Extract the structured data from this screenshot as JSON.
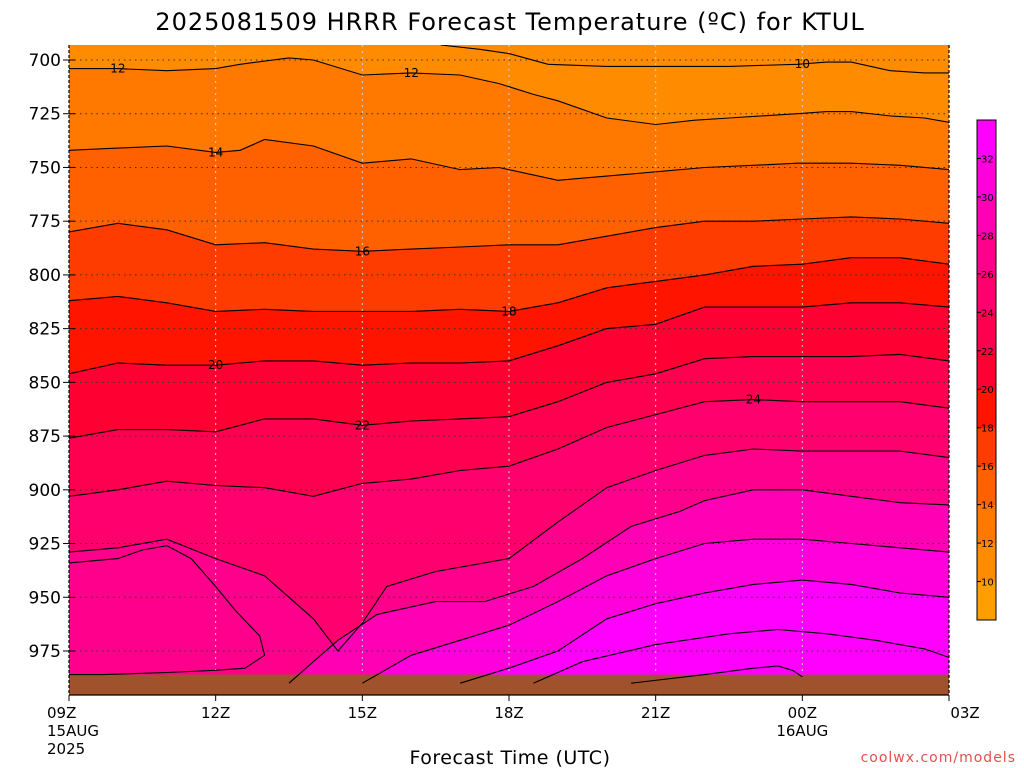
{
  "chart_data": {
    "type": "heatmap",
    "title": "2025081509 HRRR Forecast Temperature (ºC) for KTUL",
    "xlabel": "Forecast Time (UTC)",
    "ylabel": "",
    "y_axis": {
      "ticks": [
        700,
        725,
        750,
        775,
        800,
        825,
        850,
        875,
        900,
        925,
        950,
        975
      ],
      "range": [
        693,
        990
      ],
      "inverted": true
    },
    "x_axis": {
      "range": [
        0,
        18
      ],
      "ticks": [
        {
          "x": 0,
          "label": "09Z",
          "sub": "15AUG",
          "sub2": "2025"
        },
        {
          "x": 3,
          "label": "12Z",
          "sub": "",
          "sub2": ""
        },
        {
          "x": 6,
          "label": "15Z",
          "sub": "",
          "sub2": ""
        },
        {
          "x": 9,
          "label": "18Z",
          "sub": "",
          "sub2": ""
        },
        {
          "x": 12,
          "label": "21Z",
          "sub": "",
          "sub2": ""
        },
        {
          "x": 15,
          "label": "00Z",
          "sub": "16AUG",
          "sub2": ""
        },
        {
          "x": 18,
          "label": "03Z",
          "sub": "",
          "sub2": ""
        }
      ]
    },
    "grid": true,
    "colorbar": {
      "placement": "right",
      "tick_labels": [
        "10",
        "12",
        "14",
        "16",
        "18",
        "20",
        "22",
        "24",
        "26",
        "28",
        "30",
        "32"
      ],
      "levels": [
        {
          "min": 9,
          "max": 10,
          "color": "#ff9e00"
        },
        {
          "min": 10,
          "max": 12,
          "color": "#ff8c00"
        },
        {
          "min": 12,
          "max": 14,
          "color": "#ff7800"
        },
        {
          "min": 14,
          "max": 16,
          "color": "#ff6000"
        },
        {
          "min": 16,
          "max": 18,
          "color": "#ff3c00"
        },
        {
          "min": 18,
          "max": 20,
          "color": "#ff1400"
        },
        {
          "min": 20,
          "max": 22,
          "color": "#ff0032"
        },
        {
          "min": 22,
          "max": 24,
          "color": "#ff0050"
        },
        {
          "min": 24,
          "max": 26,
          "color": "#ff006e"
        },
        {
          "min": 26,
          "max": 28,
          "color": "#ff008c"
        },
        {
          "min": 28,
          "max": 30,
          "color": "#ff00b4"
        },
        {
          "min": 30,
          "max": 32,
          "color": "#ff00dc"
        },
        {
          "min": 32,
          "max": 34,
          "color": "#ff00ff"
        }
      ]
    },
    "contours": [
      {
        "level": 10,
        "label": "10",
        "label_x": 15,
        "points": [
          [
            7.6,
            693
          ],
          [
            8.4,
            695
          ],
          [
            9.0,
            697
          ],
          [
            9.8,
            702
          ],
          [
            11.0,
            703
          ],
          [
            13.5,
            703
          ],
          [
            14.9,
            702
          ],
          [
            15.5,
            701
          ],
          [
            16.0,
            701
          ],
          [
            16.8,
            705
          ],
          [
            17.5,
            706
          ],
          [
            18.0,
            706
          ]
        ]
      },
      {
        "level": 12,
        "label": "12",
        "label_x": 1,
        "points": [
          [
            0.0,
            704
          ],
          [
            1.0,
            704
          ],
          [
            2.0,
            705
          ],
          [
            3.0,
            704
          ],
          [
            3.5,
            702
          ],
          [
            4.5,
            699
          ],
          [
            5.0,
            700
          ],
          [
            6.0,
            707
          ],
          [
            7.0,
            706
          ],
          [
            8.0,
            707
          ],
          [
            8.8,
            711
          ],
          [
            9.5,
            716
          ],
          [
            10.0,
            719
          ],
          [
            11.0,
            727
          ],
          [
            12.0,
            730
          ],
          [
            12.8,
            728
          ],
          [
            13.5,
            727
          ],
          [
            14.9,
            725
          ],
          [
            15.5,
            724
          ],
          [
            16.0,
            724
          ],
          [
            16.8,
            726
          ],
          [
            17.5,
            727
          ],
          [
            18.0,
            729
          ]
        ]
      },
      {
        "level": 12,
        "label": "12",
        "label_x": 7,
        "points": []
      },
      {
        "level": 14,
        "label": "14",
        "label_x": 3,
        "points": [
          [
            0.0,
            742
          ],
          [
            1.0,
            741
          ],
          [
            2.0,
            740
          ],
          [
            3.0,
            743
          ],
          [
            3.5,
            742
          ],
          [
            4.0,
            737
          ],
          [
            5.0,
            740
          ],
          [
            6.0,
            748
          ],
          [
            7.0,
            746
          ],
          [
            8.0,
            751
          ],
          [
            8.8,
            750
          ],
          [
            10.0,
            756
          ],
          [
            11.0,
            754
          ],
          [
            12.0,
            752
          ],
          [
            13.0,
            750
          ],
          [
            14.0,
            749
          ],
          [
            14.9,
            748
          ],
          [
            16.0,
            748
          ],
          [
            17.0,
            749
          ],
          [
            18.0,
            751
          ]
        ]
      },
      {
        "level": 16,
        "label": "16",
        "label_x": 6,
        "points": [
          [
            0.0,
            780
          ],
          [
            1.0,
            776
          ],
          [
            2.0,
            779
          ],
          [
            3.0,
            786
          ],
          [
            4.0,
            785
          ],
          [
            5.0,
            788
          ],
          [
            6.0,
            789
          ],
          [
            7.0,
            788
          ],
          [
            8.0,
            787
          ],
          [
            9.0,
            786
          ],
          [
            10.0,
            786
          ],
          [
            11.0,
            782
          ],
          [
            12.0,
            778
          ],
          [
            13.0,
            775
          ],
          [
            14.0,
            775
          ],
          [
            15.0,
            774
          ],
          [
            16.0,
            773
          ],
          [
            17.0,
            774
          ],
          [
            18.0,
            776
          ]
        ]
      },
      {
        "level": 18,
        "label": "18",
        "label_x": 9,
        "points": [
          [
            0.0,
            812
          ],
          [
            1.0,
            810
          ],
          [
            2.0,
            813
          ],
          [
            3.0,
            817
          ],
          [
            4.0,
            816
          ],
          [
            5.0,
            817
          ],
          [
            6.0,
            817
          ],
          [
            7.0,
            817
          ],
          [
            8.0,
            816
          ],
          [
            9.0,
            817
          ],
          [
            10.0,
            813
          ],
          [
            11.0,
            806
          ],
          [
            12.0,
            803
          ],
          [
            13.0,
            800
          ],
          [
            14.0,
            796
          ],
          [
            15.0,
            795
          ],
          [
            16.0,
            792
          ],
          [
            17.0,
            792
          ],
          [
            18.0,
            795
          ]
        ]
      },
      {
        "level": 20,
        "label": "20",
        "label_x": 3,
        "points": [
          [
            0.0,
            846
          ],
          [
            1.0,
            841
          ],
          [
            2.0,
            842
          ],
          [
            3.0,
            842
          ],
          [
            4.0,
            840
          ],
          [
            5.0,
            840
          ],
          [
            6.0,
            842
          ],
          [
            7.0,
            841
          ],
          [
            8.0,
            841
          ],
          [
            9.0,
            840
          ],
          [
            10.0,
            833
          ],
          [
            11.0,
            825
          ],
          [
            12.0,
            823
          ],
          [
            13.0,
            815
          ],
          [
            14.0,
            815
          ],
          [
            15.0,
            815
          ],
          [
            16.0,
            813
          ],
          [
            17.0,
            813
          ],
          [
            18.0,
            815
          ]
        ]
      },
      {
        "level": 22,
        "label": "22",
        "label_x": 6,
        "points": [
          [
            0.0,
            876
          ],
          [
            1.0,
            872
          ],
          [
            2.0,
            872
          ],
          [
            3.0,
            873
          ],
          [
            4.0,
            867
          ],
          [
            5.0,
            867
          ],
          [
            6.0,
            870
          ],
          [
            7.0,
            868
          ],
          [
            8.0,
            867
          ],
          [
            9.0,
            866
          ],
          [
            10.0,
            859
          ],
          [
            11.0,
            850
          ],
          [
            12.0,
            846
          ],
          [
            13.0,
            839
          ],
          [
            14.0,
            838
          ],
          [
            15.0,
            838
          ],
          [
            16.0,
            838
          ],
          [
            17.0,
            837
          ],
          [
            18.0,
            840
          ]
        ]
      },
      {
        "level": 24,
        "label": "24",
        "label_x": 14,
        "points": [
          [
            0.0,
            903
          ],
          [
            1.0,
            900
          ],
          [
            2.0,
            896
          ],
          [
            3.0,
            898
          ],
          [
            4.0,
            899
          ],
          [
            5.0,
            903
          ],
          [
            6.0,
            897
          ],
          [
            7.0,
            895
          ],
          [
            8.0,
            891
          ],
          [
            9.0,
            889
          ],
          [
            10.0,
            881
          ],
          [
            11.0,
            871
          ],
          [
            12.0,
            865
          ],
          [
            13.0,
            859
          ],
          [
            14.0,
            858
          ],
          [
            15.0,
            859
          ],
          [
            16.0,
            859
          ],
          [
            17.0,
            859
          ],
          [
            18.0,
            862
          ]
        ]
      },
      {
        "level": 26,
        "label": "",
        "label_x": null,
        "points": [
          [
            0.0,
            929
          ],
          [
            1.0,
            927
          ],
          [
            2.0,
            923
          ],
          [
            3.0,
            932
          ],
          [
            4.0,
            940
          ],
          [
            5.0,
            960
          ],
          [
            5.5,
            975
          ],
          [
            6.0,
            962
          ],
          [
            6.5,
            945
          ],
          [
            7.5,
            938
          ],
          [
            9.0,
            932
          ],
          [
            10.0,
            915
          ],
          [
            11.0,
            899
          ],
          [
            12.0,
            891
          ],
          [
            13.0,
            884
          ],
          [
            14.0,
            881
          ],
          [
            15.0,
            882
          ],
          [
            16.0,
            882
          ],
          [
            17.0,
            882
          ],
          [
            18.0,
            885
          ]
        ]
      },
      {
        "level": 26,
        "label": "",
        "label_x": null,
        "points": [
          [
            0.0,
            986
          ],
          [
            0.7,
            986
          ],
          [
            2.0,
            985
          ],
          [
            3.0,
            984
          ],
          [
            3.6,
            983
          ],
          [
            4.0,
            977
          ],
          [
            3.9,
            968
          ],
          [
            3.4,
            956
          ],
          [
            3.0,
            945
          ],
          [
            2.5,
            932
          ],
          [
            2.0,
            926
          ],
          [
            1.5,
            928
          ],
          [
            1.0,
            932
          ],
          [
            0.0,
            934
          ]
        ]
      },
      {
        "level": 28,
        "label": "",
        "label_x": null,
        "points": [
          [
            4.5,
            990
          ],
          [
            5.0,
            980
          ],
          [
            5.5,
            970
          ],
          [
            6.3,
            958
          ],
          [
            7.5,
            952
          ],
          [
            8.5,
            952
          ],
          [
            9.5,
            945
          ],
          [
            10.5,
            932
          ],
          [
            11.5,
            917
          ],
          [
            12.5,
            910
          ],
          [
            13.0,
            905
          ],
          [
            14.0,
            900
          ],
          [
            15.0,
            900
          ],
          [
            16.0,
            903
          ],
          [
            17.0,
            906
          ],
          [
            18.0,
            907
          ]
        ]
      },
      {
        "level": 30,
        "label": "",
        "label_x": null,
        "points": [
          [
            6.0,
            990
          ],
          [
            7.0,
            977
          ],
          [
            8.0,
            970
          ],
          [
            9.0,
            963
          ],
          [
            10.0,
            952
          ],
          [
            11.0,
            940
          ],
          [
            12.0,
            932
          ],
          [
            13.0,
            925
          ],
          [
            14.0,
            923
          ],
          [
            15.0,
            923
          ],
          [
            16.0,
            925
          ],
          [
            17.0,
            927
          ],
          [
            18.0,
            929
          ]
        ]
      },
      {
        "level": 32,
        "label": "",
        "label_x": null,
        "points": [
          [
            8.0,
            990
          ],
          [
            9.0,
            983
          ],
          [
            10.0,
            975
          ],
          [
            11.0,
            960
          ],
          [
            12.0,
            953
          ],
          [
            13.0,
            948
          ],
          [
            14.0,
            944
          ],
          [
            15.0,
            942
          ],
          [
            16.0,
            944
          ],
          [
            17.0,
            948
          ],
          [
            18.0,
            950
          ]
        ]
      },
      {
        "level": 32,
        "label": "",
        "label_x": null,
        "points": [
          [
            9.5,
            990
          ],
          [
            10.5,
            980
          ],
          [
            12.0,
            972
          ],
          [
            13.5,
            967
          ],
          [
            14.5,
            965
          ],
          [
            15.5,
            967
          ],
          [
            16.5,
            970
          ],
          [
            17.5,
            974
          ],
          [
            18.0,
            978
          ]
        ]
      },
      {
        "level": 34,
        "label": "",
        "label_x": null,
        "points": [
          [
            11.5,
            990
          ],
          [
            13.0,
            986
          ],
          [
            14.0,
            983
          ],
          [
            14.5,
            982
          ],
          [
            14.8,
            984
          ],
          [
            15.0,
            987
          ]
        ]
      }
    ],
    "terrain": {
      "color": "#a0522d",
      "surface_pressure": 986
    },
    "bands": [
      {
        "color": "#ff9e00",
        "points": [
          [
            0,
            693
          ],
          [
            18,
            693
          ]
        ]
      }
    ]
  },
  "watermark": "coolwx.com/models"
}
